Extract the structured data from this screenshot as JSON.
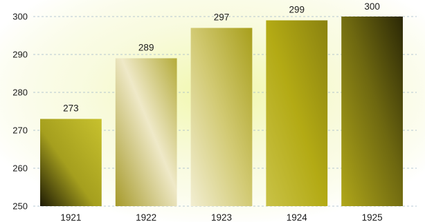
{
  "chart_data": {
    "type": "bar",
    "categories": [
      "1921",
      "1922",
      "1923",
      "1924",
      "1925"
    ],
    "values": [
      273,
      289,
      297,
      299,
      300
    ],
    "data_labels": [
      "273",
      "289",
      "297",
      "299",
      "300"
    ],
    "title": "",
    "xlabel": "",
    "ylabel": "",
    "ylim": [
      250,
      300
    ],
    "yticks": [
      250,
      260,
      270,
      280,
      290,
      300
    ],
    "grid": true,
    "legend": "none",
    "colors": {
      "background_glow": "#f2f5b8",
      "bar_light": "#f4f0d4",
      "bar_mid": "#b9b02a",
      "bar_dark": "#2e2a08",
      "grid": "#9fb6c9",
      "text": "#1a1a1a"
    }
  }
}
